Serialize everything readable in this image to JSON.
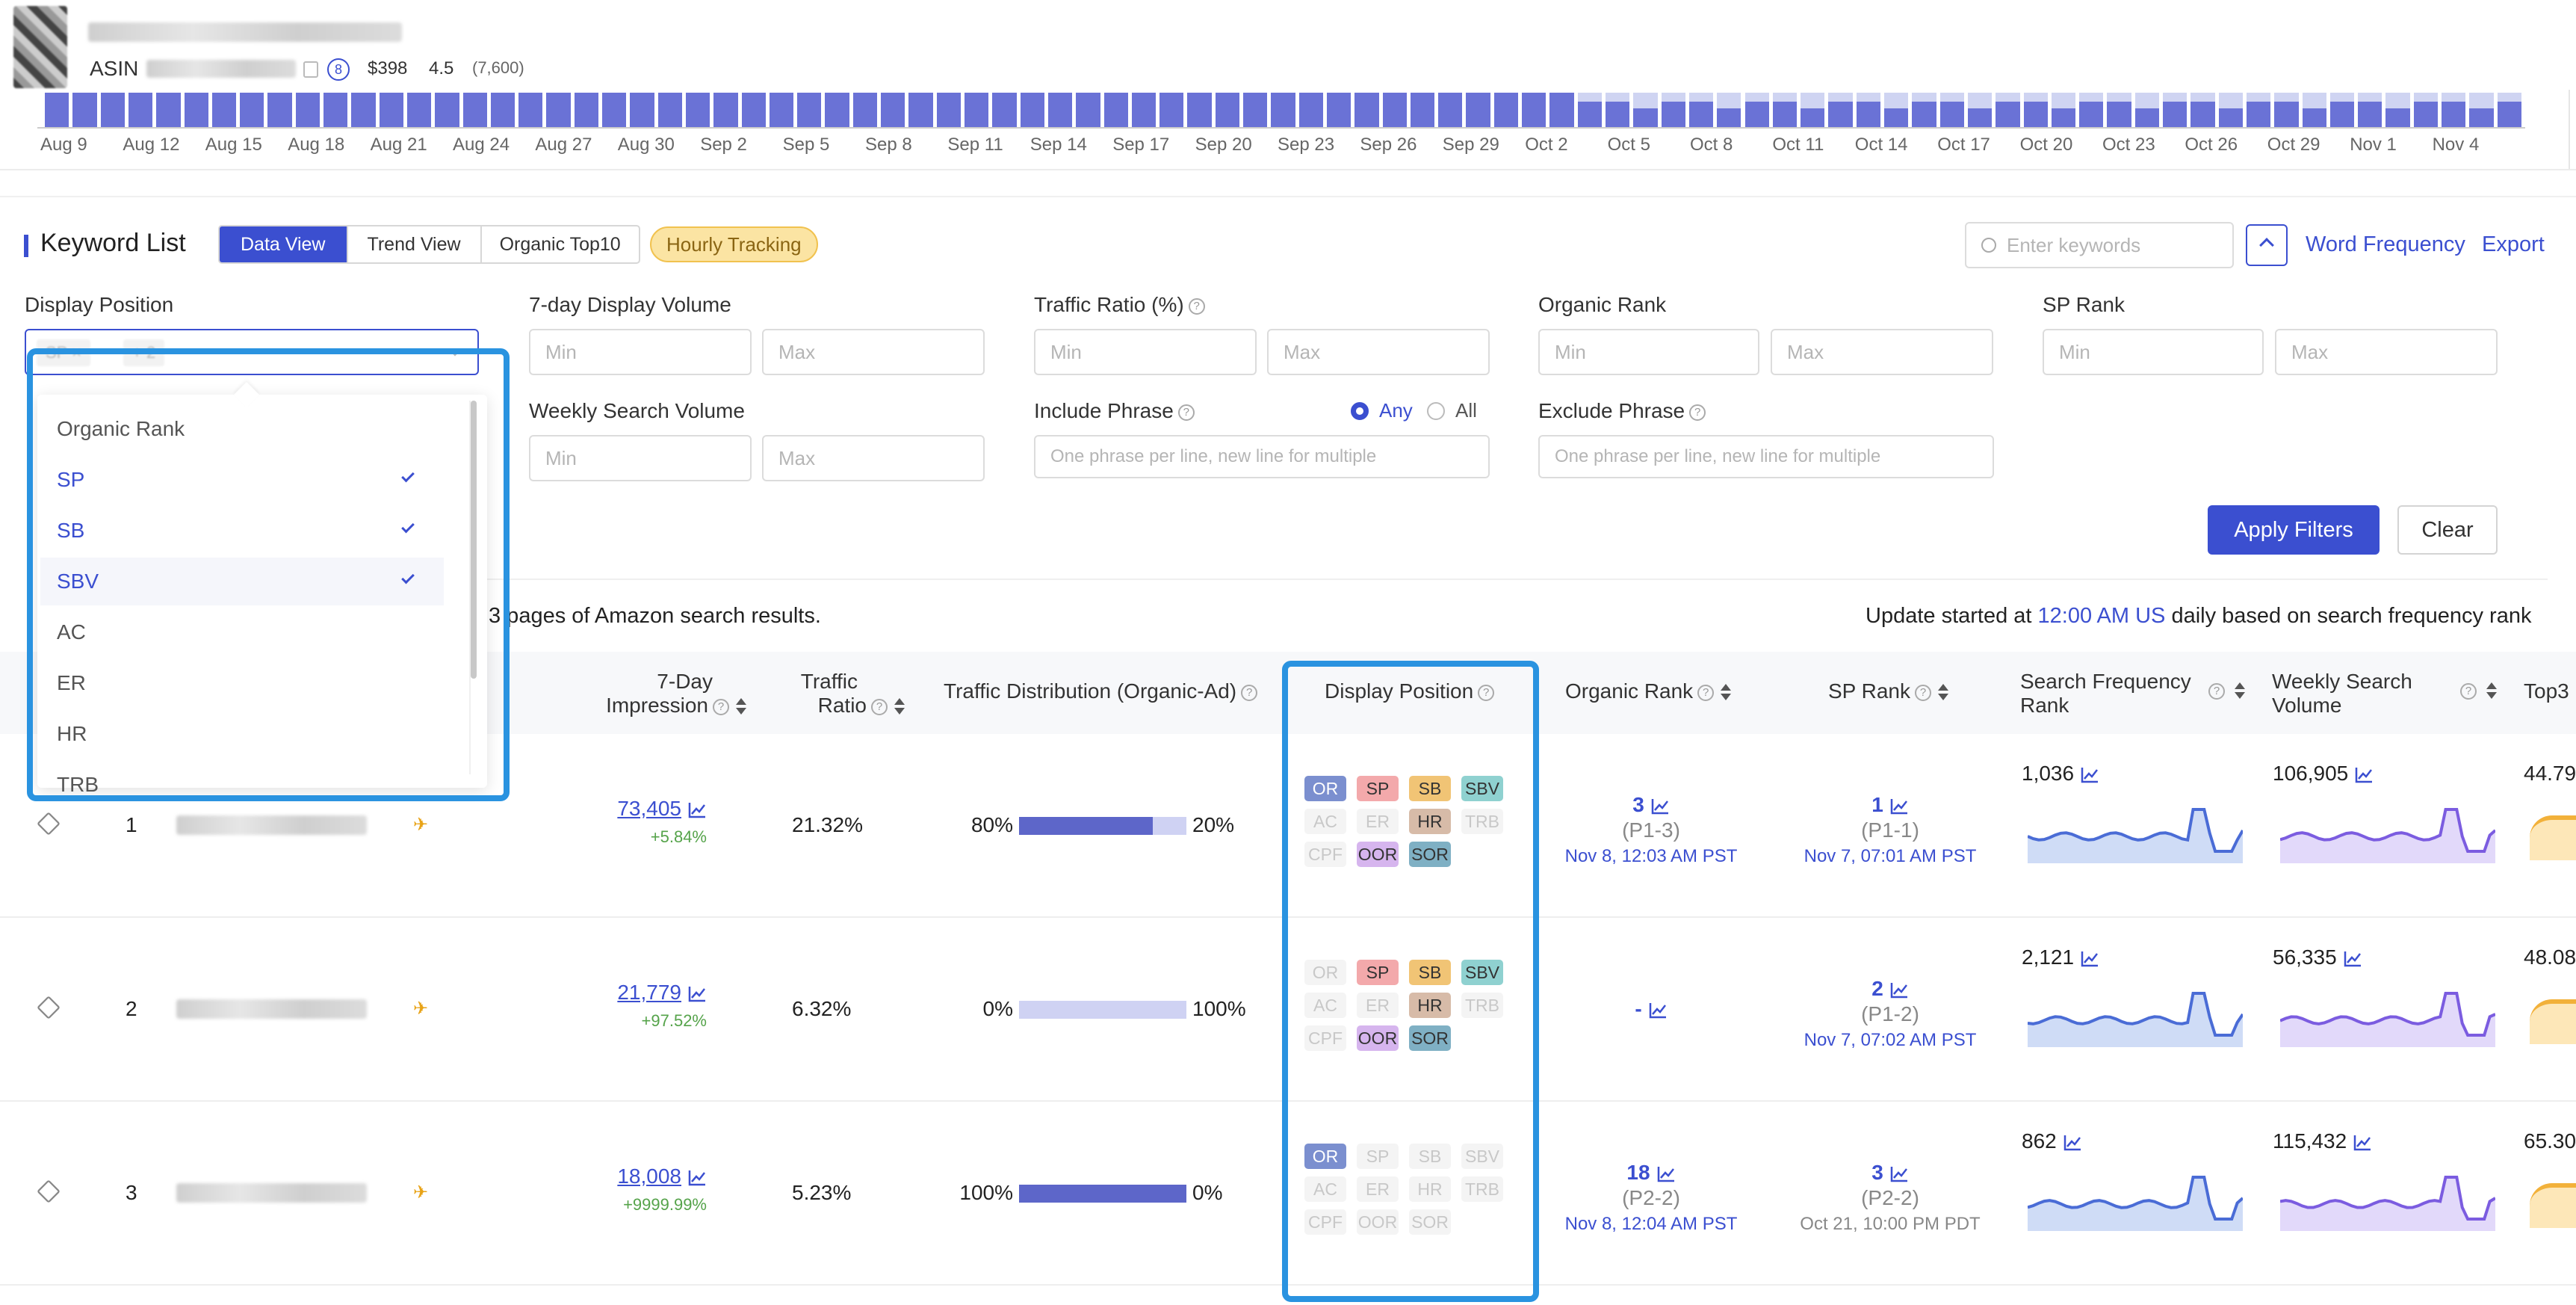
{
  "product": {
    "asin_label": "ASIN",
    "badge": "8",
    "price": "$398",
    "rating": "4.5",
    "reviews": "(7,600)"
  },
  "timeline": {
    "dates": [
      "Aug 9",
      "Aug 12",
      "Aug 15",
      "Aug 18",
      "Aug 21",
      "Aug 24",
      "Aug 27",
      "Aug 30",
      "Sep 2",
      "Sep 5",
      "Sep 8",
      "Sep 11",
      "Sep 14",
      "Sep 17",
      "Sep 20",
      "Sep 23",
      "Sep 26",
      "Sep 29",
      "Oct 2",
      "Oct 5",
      "Oct 8",
      "Oct 11",
      "Oct 14",
      "Oct 17",
      "Oct 20",
      "Oct 23",
      "Oct 26",
      "Oct 29",
      "Nov 1",
      "Nov 4"
    ]
  },
  "header": {
    "title": "Keyword List",
    "tabs": [
      "Data View",
      "Trend View",
      "Organic Top10"
    ],
    "active_tab": "Data View",
    "hourly": "Hourly Tracking",
    "search_placeholder": "Enter keywords",
    "word_frequency": "Word Frequency",
    "export": "Export"
  },
  "filters": {
    "display_position": "Display Position",
    "display_volume": "7-day Display Volume",
    "traffic_ratio": "Traffic Ratio (%)",
    "organic_rank": "Organic Rank",
    "sp_rank": "SP Rank",
    "weekly_search_volume": "Weekly Search Volume",
    "include_phrase": "Include Phrase",
    "any": "Any",
    "all": "All",
    "exclude_phrase": "Exclude Phrase",
    "min": "Min",
    "max": "Max",
    "phrase_placeholder": "One phrase per line, new line for multiple",
    "apply": "Apply Filters",
    "clear": "Clear"
  },
  "dropdown": {
    "options": [
      {
        "label": "Organic Rank",
        "selected": false
      },
      {
        "label": "SP",
        "selected": true
      },
      {
        "label": "SB",
        "selected": true
      },
      {
        "label": "SBV",
        "selected": true
      },
      {
        "label": "AC",
        "selected": false
      },
      {
        "label": "ER",
        "selected": false
      },
      {
        "label": "HR",
        "selected": false
      },
      {
        "label": "TRB",
        "selected": false
      }
    ],
    "chips": [
      "SP",
      "+ 2"
    ]
  },
  "info": {
    "left": "3 pages of Amazon search results.",
    "right_pre": "Update started at ",
    "right_link": "12:00 AM US",
    "right_post": " daily based on search frequency rank"
  },
  "columns": {
    "impression": "7-Day Impression",
    "impression_1": "7-Day",
    "impression_2": "Impression",
    "traffic_1": "Traffic",
    "traffic_2": "Ratio",
    "distribution": "Traffic Distribution (Organic-Ad)",
    "display_position": "Display Position",
    "organic_rank": "Organic Rank",
    "sp_rank": "SP Rank",
    "sfr_1": "Search Frequency",
    "sfr_2": "Rank",
    "wsv_1": "Weekly Search",
    "wsv_2": "Volume",
    "top3": "Top3"
  },
  "tag_labels": [
    "OR",
    "SP",
    "SB",
    "SBV",
    "AC",
    "ER",
    "HR",
    "TRB",
    "CPF",
    "OOR",
    "SOR"
  ],
  "rows": [
    {
      "index": "1",
      "impression": "73,405",
      "impression_change": "+5.84%",
      "traffic_ratio": "21.32%",
      "organic_pct": "80%",
      "ad_pct": "20%",
      "organic_share": 0.8,
      "tags_on": [
        "OR",
        "SP",
        "SB",
        "SBV",
        "HR",
        "OOR",
        "SOR"
      ],
      "organic_rank": "3",
      "organic_page": "(P1-3)",
      "organic_time": "Nov 8, 12:03 AM PST",
      "sp_rank": "1",
      "sp_page": "(P1-1)",
      "sp_time": "Nov 7, 07:01 AM PST",
      "sfr": "1,036",
      "wsv": "106,905",
      "top3": "44.79"
    },
    {
      "index": "2",
      "impression": "21,779",
      "impression_change": "+97.52%",
      "traffic_ratio": "6.32%",
      "organic_pct": "0%",
      "ad_pct": "100%",
      "organic_share": 0,
      "tags_on": [
        "SP",
        "SB",
        "SBV",
        "HR",
        "OOR",
        "SOR"
      ],
      "organic_rank": "-",
      "organic_page": "",
      "organic_time": "",
      "sp_rank": "2",
      "sp_page": "(P1-2)",
      "sp_time": "Nov 7, 07:02 AM PST",
      "sfr": "2,121",
      "wsv": "56,335",
      "top3": "48.08"
    },
    {
      "index": "3",
      "impression": "18,008",
      "impression_change": "+9999.99%",
      "traffic_ratio": "5.23%",
      "organic_pct": "100%",
      "ad_pct": "0%",
      "organic_share": 1,
      "tags_on": [
        "OR"
      ],
      "organic_rank": "18",
      "organic_page": "(P2-2)",
      "organic_time": "Nov 8, 12:04 AM PST",
      "sp_rank": "3",
      "sp_page": "(P2-2)",
      "sp_time": "Oct 21, 10:00 PM PDT",
      "sfr": "862",
      "wsv": "115,432",
      "top3": "65.30"
    }
  ]
}
